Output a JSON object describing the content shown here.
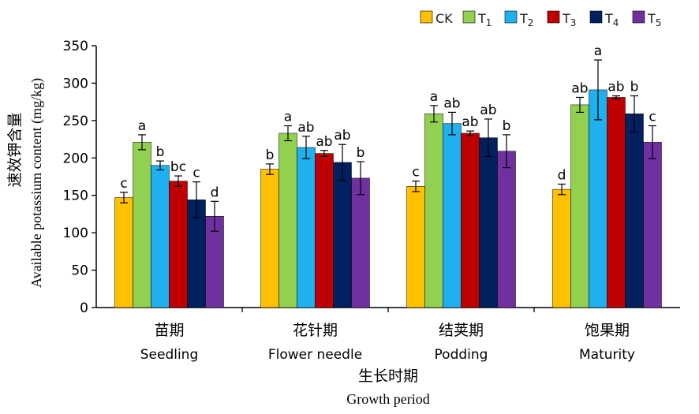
{
  "chart_data": {
    "type": "bar",
    "title": "",
    "ylabel_cn": "速效钾含量",
    "ylabel_en": "Available potassium content (mg/kg)",
    "xlabel_cn": "生长时期",
    "xlabel_en": "Growth period",
    "ylim": [
      0,
      350
    ],
    "yticks": [
      "0",
      "50",
      "100",
      "150",
      "200",
      "250",
      "300",
      "350"
    ],
    "categories": [
      {
        "cn": "苗期",
        "en": "Seedling"
      },
      {
        "cn": "花针期",
        "en": "Flower needle"
      },
      {
        "cn": "结荚期",
        "en": "Podding"
      },
      {
        "cn": "饱果期",
        "en": "Maturity"
      }
    ],
    "legend_position": "top-right",
    "grid": false,
    "series": [
      {
        "name": "CK",
        "sub": "",
        "color": "#FFC000",
        "values": [
          147,
          185,
          162,
          158
        ],
        "errors": [
          7,
          7,
          7,
          7
        ],
        "letters": [
          "c",
          "b",
          "c",
          "d"
        ]
      },
      {
        "name": "T",
        "sub": "1",
        "color": "#92D050",
        "values": [
          221,
          233,
          259,
          271
        ],
        "errors": [
          10,
          10,
          11,
          10
        ],
        "letters": [
          "a",
          "a",
          "a",
          "ab"
        ]
      },
      {
        "name": "T",
        "sub": "2",
        "color": "#1FB0F0",
        "values": [
          190,
          214,
          246,
          291
        ],
        "errors": [
          6,
          15,
          15,
          40
        ],
        "letters": [
          "b",
          "ab",
          "ab",
          "a"
        ]
      },
      {
        "name": "T",
        "sub": "3",
        "color": "#C00000",
        "values": [
          169,
          206,
          233,
          281
        ],
        "errors": [
          7,
          4,
          3,
          2
        ],
        "letters": [
          "bc",
          "ab",
          "ab",
          "ab"
        ]
      },
      {
        "name": "T",
        "sub": "4",
        "color": "#002060",
        "values": [
          144,
          194,
          227,
          259
        ],
        "errors": [
          24,
          24,
          25,
          24
        ],
        "letters": [
          "c",
          "ab",
          "ab",
          "b"
        ]
      },
      {
        "name": "T",
        "sub": "5",
        "color": "#7030A0",
        "values": [
          122,
          173,
          209,
          221
        ],
        "errors": [
          20,
          22,
          22,
          22
        ],
        "letters": [
          "d",
          "b",
          "b",
          "c"
        ]
      }
    ]
  }
}
